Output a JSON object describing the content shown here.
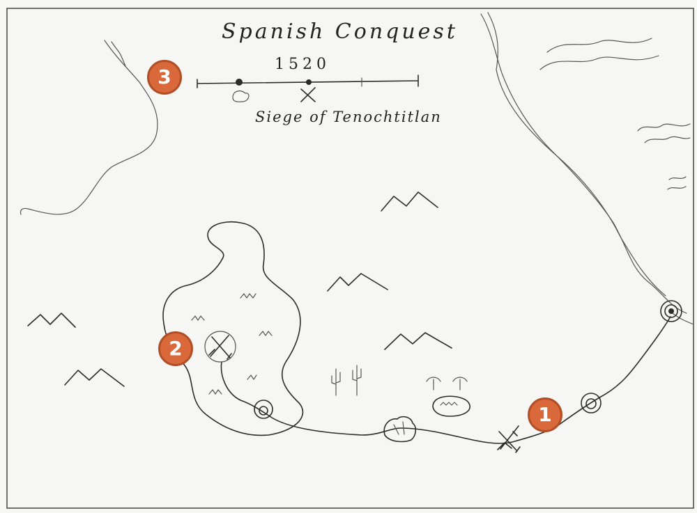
{
  "map": {
    "title": "Spanish Conquest",
    "year": "1520",
    "event_label": "Siege of Tenochtitlan"
  },
  "markers": [
    {
      "label": "1",
      "icon": "crossed-swords-icon"
    },
    {
      "label": "2",
      "icon": "crossed-swords-icon"
    },
    {
      "label": "3",
      "icon": "timeline-icon"
    }
  ],
  "colors": {
    "ink": "#2b2b2b",
    "paper": "#f6f6f4",
    "badge_fill": "#d9683b",
    "badge_border": "#b14e25"
  }
}
